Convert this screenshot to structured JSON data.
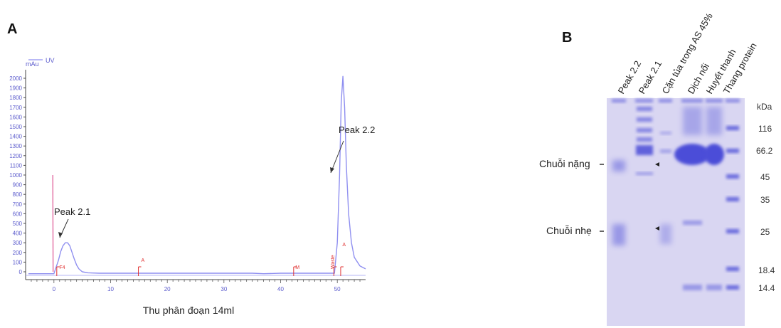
{
  "panelA": {
    "letter": "A",
    "legend": "UV",
    "y_unit": "mAu",
    "xlabel": "Thu phân đoạn 14ml",
    "peak_labels": [
      "Peak 2.1",
      "Peak 2.2"
    ],
    "fraction_marks": [
      "F4",
      "A",
      "M",
      "Waste",
      "A"
    ]
  },
  "chart_data": {
    "type": "line",
    "title": "",
    "xlabel": "Thu phân đoạn 14ml",
    "ylabel": "mAu",
    "xlim": [
      -5,
      55
    ],
    "ylim": [
      0,
      2050
    ],
    "xticks": [
      0,
      10,
      20,
      30,
      40,
      50
    ],
    "yticks": [
      0,
      100,
      200,
      300,
      400,
      500,
      600,
      700,
      800,
      900,
      1000,
      1100,
      1200,
      1300,
      1400,
      1500,
      1600,
      1700,
      1800,
      1900,
      2000
    ],
    "series": [
      {
        "name": "UV",
        "x": [
          -4.5,
          0,
          0.8,
          1.2,
          1.6,
          2.0,
          2.4,
          2.8,
          3.2,
          3.6,
          4.0,
          4.4,
          5,
          6,
          8,
          20,
          30,
          35,
          37,
          40,
          45,
          49.5,
          50,
          50.4,
          50.7,
          51.0,
          51.3,
          51.6,
          52.0,
          52.5,
          53,
          54,
          55
        ],
        "y": [
          -20,
          -20,
          120,
          210,
          270,
          300,
          300,
          270,
          200,
          130,
          70,
          30,
          0,
          -10,
          -15,
          -15,
          -15,
          -15,
          -20,
          -15,
          -15,
          -15,
          300,
          1000,
          1750,
          2020,
          1700,
          1100,
          600,
          300,
          150,
          60,
          30
        ]
      }
    ],
    "marker_series": {
      "x": [
        -0.2,
        -0.15
      ],
      "y": [
        1000,
        0
      ]
    }
  },
  "panelB": {
    "letter": "B",
    "lane_labels": [
      "Peak 2.2",
      "Peak 2.1",
      "Cặn tủa trong AS 45%",
      "Dịch nổi",
      "Huyết thanh",
      "Thang protein"
    ],
    "band_labels": [
      "Chuỗi nặng",
      "Chuỗi nhẹ"
    ],
    "kda_unit": "kDa",
    "kda_markers": [
      "116",
      "66.2",
      "45",
      "35",
      "25",
      "18.4",
      "14.4"
    ]
  },
  "colors": {
    "uv_line": "#8f8ff0",
    "marker": "#e0609a",
    "fraction": "#e03030",
    "gel_bg": "#d8d5f1",
    "band": "#4c4ed8"
  }
}
